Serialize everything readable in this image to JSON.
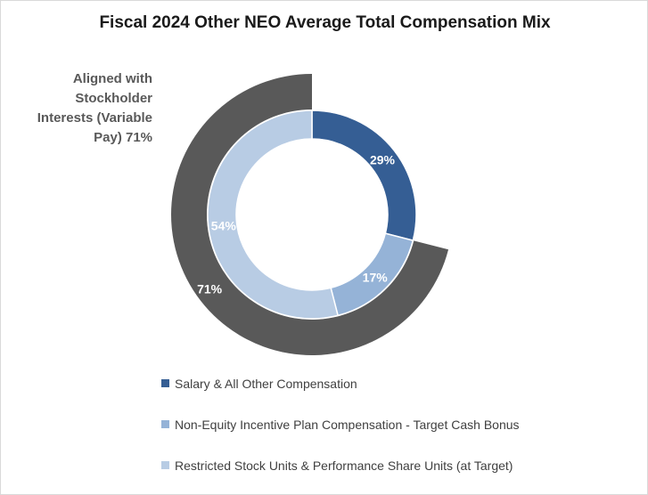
{
  "chart_data": {
    "type": "donut",
    "title": "Fiscal 2024 Other NEO Average Total Compensation Mix",
    "inner_ring": {
      "series": [
        {
          "name": "Salary & All Other Compensation",
          "value": 29,
          "label": "29%",
          "color": "#355E94"
        },
        {
          "name": "Non-Equity Incentive Plan Compensation - Target Cash Bonus",
          "value": 17,
          "label": "17%",
          "color": "#95B3D7"
        },
        {
          "name": "Restricted Stock Units & Performance Share Units (at Target)",
          "value": 54,
          "label": "54%",
          "color": "#B8CCE4"
        }
      ]
    },
    "outer_ring": {
      "series": [
        {
          "name": "Aligned with Stockholder Interests (Variable Pay)",
          "value": 71,
          "label": "71%",
          "color": "#595959"
        }
      ],
      "remainder_value": 29
    },
    "callout": {
      "lines": [
        "Aligned with",
        "Stockholder",
        "Interests (Variable",
        "Pay) 71%"
      ]
    },
    "legend": {
      "placement": "bottom",
      "entries": [
        {
          "label": "Salary & All Other Compensation",
          "color": "#355E94"
        },
        {
          "label": "Non-Equity Incentive Plan Compensation - Target Cash Bonus",
          "color": "#95B3D7"
        },
        {
          "label": "Restricted Stock Units & Performance Share Units (at Target)",
          "color": "#B8CCE4"
        }
      ]
    }
  }
}
